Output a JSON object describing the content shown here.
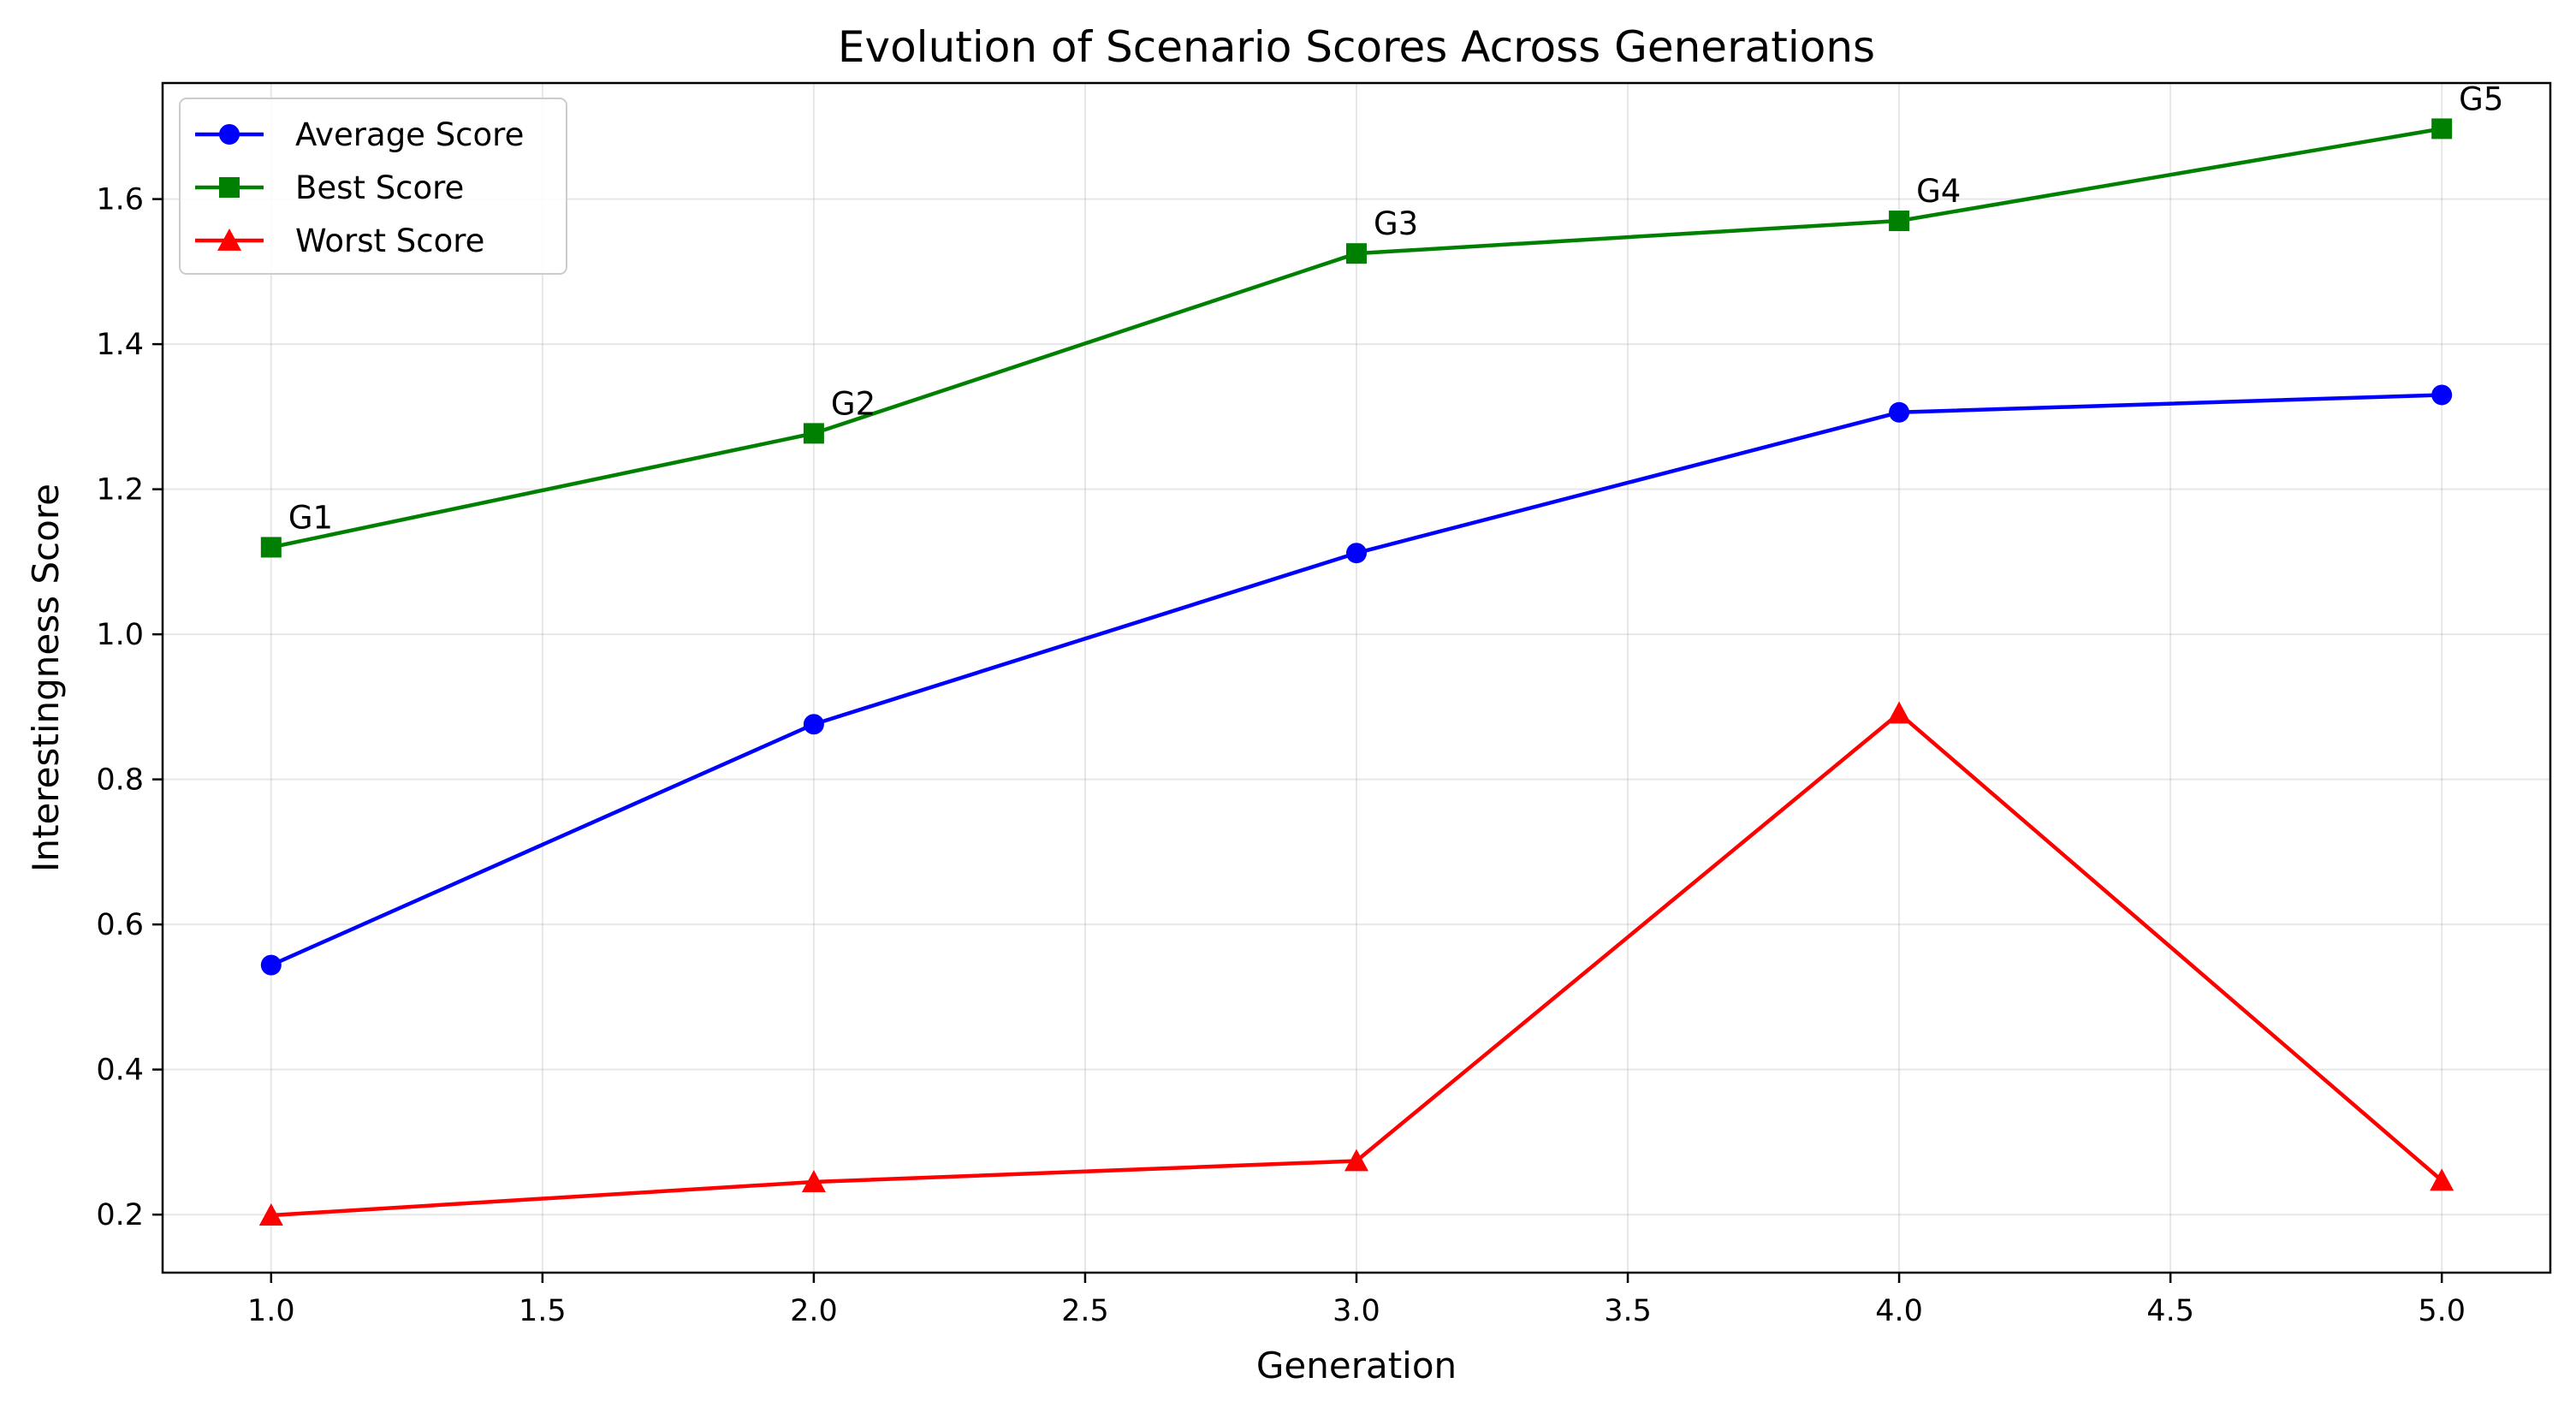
{
  "chart_data": {
    "type": "line",
    "title": "Evolution of Scenario Scores Across Generations",
    "xlabel": "Generation",
    "ylabel": "Interestingness Score",
    "xlim": [
      0.8,
      5.2
    ],
    "ylim": [
      0.12,
      1.76
    ],
    "xticks": [
      1.0,
      1.5,
      2.0,
      2.5,
      3.0,
      3.5,
      4.0,
      4.5,
      5.0
    ],
    "xtick_labels": [
      "1.0",
      "1.5",
      "2.0",
      "2.5",
      "3.0",
      "3.5",
      "4.0",
      "4.5",
      "5.0"
    ],
    "yticks": [
      0.2,
      0.4,
      0.6,
      0.8,
      1.0,
      1.2,
      1.4,
      1.6
    ],
    "ytick_labels": [
      "0.2",
      "0.4",
      "0.6",
      "0.8",
      "1.0",
      "1.2",
      "1.4",
      "1.6"
    ],
    "grid": true,
    "legend_position": "top-left",
    "x": [
      1,
      2,
      3,
      4,
      5
    ],
    "series": [
      {
        "name": "Average Score",
        "color": "#0000ff",
        "marker": "circle",
        "values": [
          0.544,
          0.876,
          1.112,
          1.306,
          1.33
        ]
      },
      {
        "name": "Best Score",
        "color": "#008000",
        "marker": "square",
        "values": [
          1.12,
          1.277,
          1.525,
          1.57,
          1.697
        ]
      },
      {
        "name": "Worst Score",
        "color": "#ff0000",
        "marker": "triangle",
        "values": [
          0.199,
          0.245,
          0.274,
          0.891,
          0.247
        ]
      }
    ],
    "annotations": [
      {
        "text": "G1",
        "x": 1,
        "y": 1.12
      },
      {
        "text": "G2",
        "x": 2,
        "y": 1.277
      },
      {
        "text": "G3",
        "x": 3,
        "y": 1.525
      },
      {
        "text": "G4",
        "x": 4,
        "y": 1.57
      },
      {
        "text": "G5",
        "x": 5,
        "y": 1.697
      }
    ]
  }
}
